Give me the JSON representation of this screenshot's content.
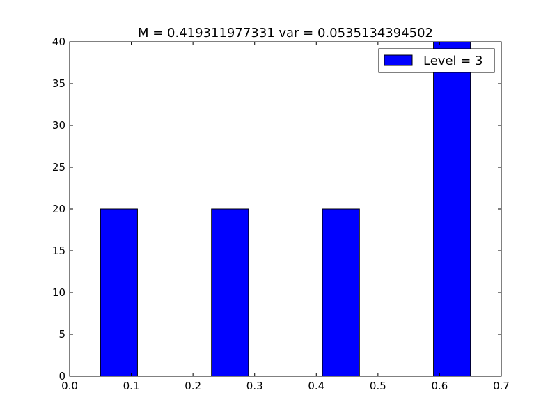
{
  "chart_data": {
    "type": "bar",
    "title": "M = 0.419311977331 var = 0.0535134394502",
    "xlabel": "",
    "ylabel": "",
    "xlim": [
      0.0,
      0.7
    ],
    "ylim": [
      0,
      40
    ],
    "xticks": [
      "0.0",
      "0.1",
      "0.2",
      "0.3",
      "0.4",
      "0.5",
      "0.6",
      "0.7"
    ],
    "yticks": [
      "0",
      "5",
      "10",
      "15",
      "20",
      "25",
      "30",
      "35",
      "40"
    ],
    "grid": false,
    "legend_position": "top-right",
    "series": [
      {
        "name": "Level = 3",
        "color": "#0000ff",
        "bars": [
          {
            "x0": 0.05,
            "x1": 0.11,
            "value": 20
          },
          {
            "x0": 0.23,
            "x1": 0.29,
            "value": 20
          },
          {
            "x0": 0.41,
            "x1": 0.47,
            "value": 20
          },
          {
            "x0": 0.59,
            "x1": 0.65,
            "value": 40
          }
        ]
      }
    ]
  }
}
